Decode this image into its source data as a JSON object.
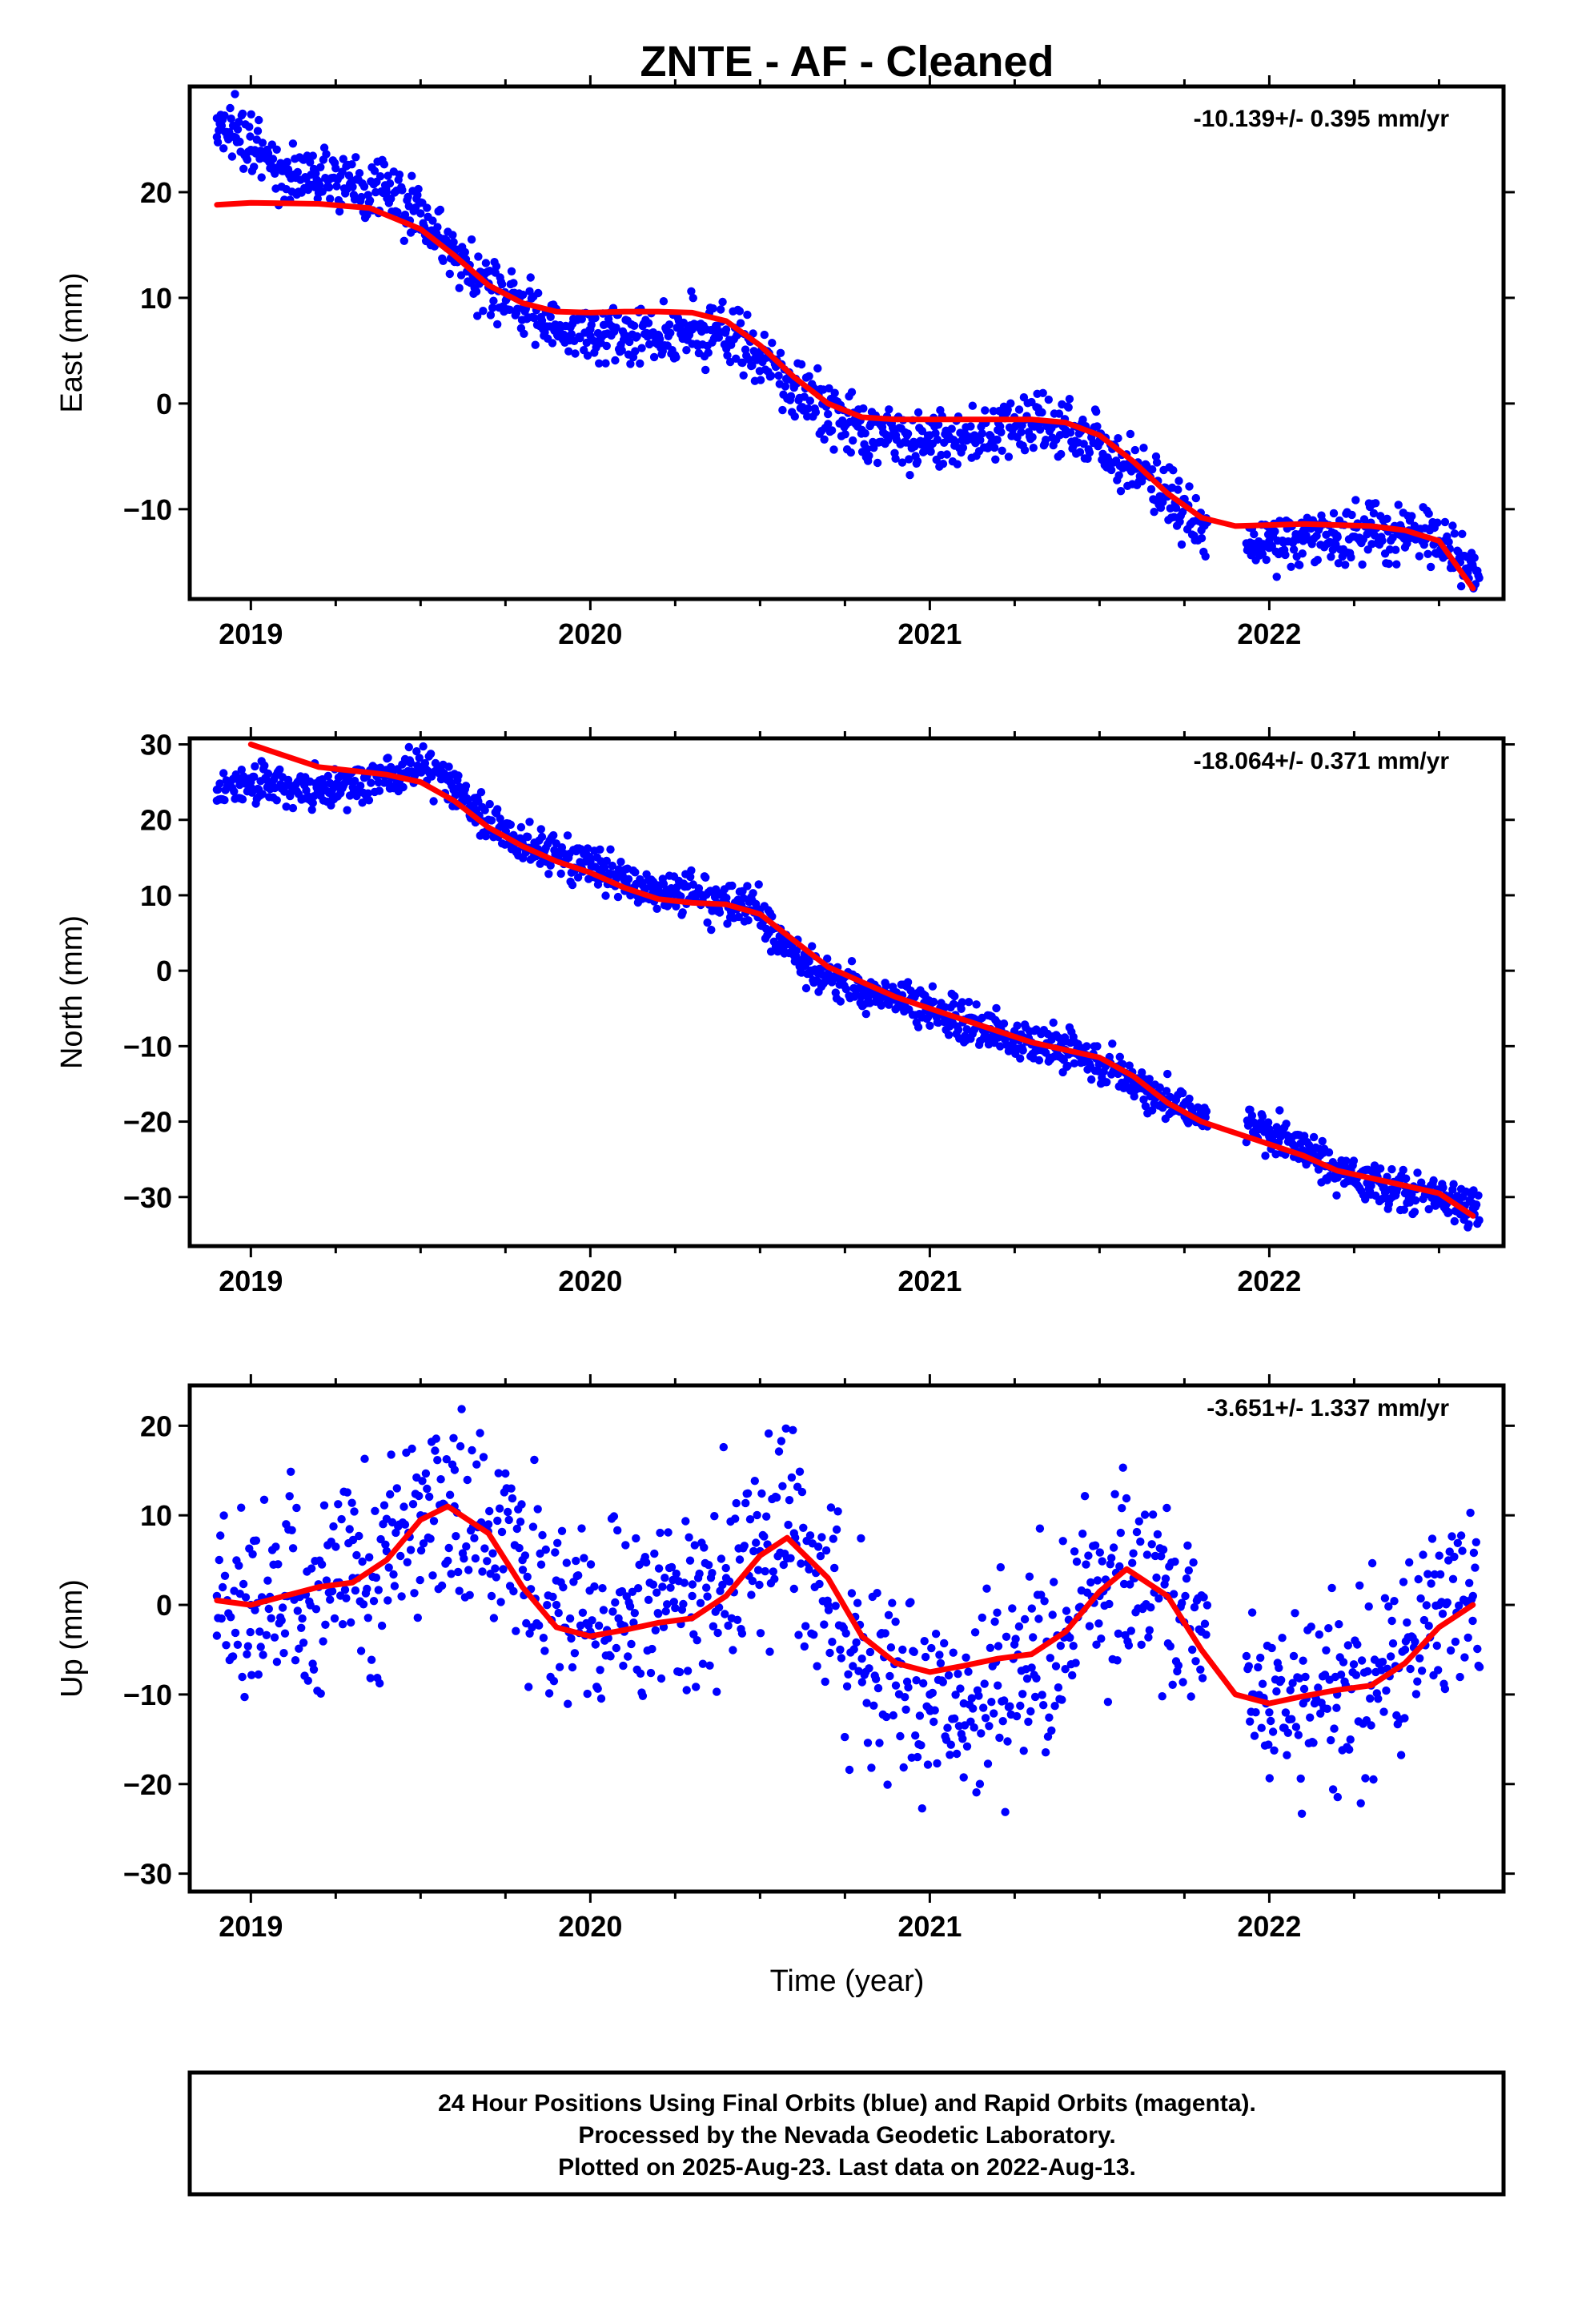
{
  "title": "ZNTE  - AF - Cleaned",
  "colors": {
    "points": "#0000ff",
    "fit": "#ff0000",
    "frame": "#000000"
  },
  "footer": {
    "line1": "24 Hour Positions Using Final Orbits (blue) and Rapid Orbits (magenta).",
    "line2": "Processed by the Nevada Geodetic Laboratory.",
    "line3": "Plotted on 2025-Aug-23. Last data on 2022-Aug-13."
  },
  "chart_data": [
    {
      "type": "scatter",
      "component": "East",
      "ylabel": "East (mm)",
      "xlabel": "",
      "rate": "-10.139+/- 0.395 mm/yr",
      "xlim": [
        2018.82,
        2022.69
      ],
      "ylim": [
        -18.5,
        30
      ],
      "yticks": [
        20,
        10,
        0,
        -10
      ],
      "xticks": [
        2019,
        2020,
        2021,
        2022
      ],
      "series": [
        {
          "role": "daily positions (blue)",
          "x": [
            2018.9,
            2019.0,
            2019.1,
            2019.2,
            2019.3,
            2019.4,
            2019.5,
            2019.6,
            2019.7,
            2019.8,
            2019.9,
            2020.0,
            2020.1,
            2020.2,
            2020.3,
            2020.4,
            2020.5,
            2020.6,
            2020.7,
            2020.8,
            2020.9,
            2021.0,
            2021.1,
            2021.2,
            2021.3,
            2021.4,
            2021.5,
            2021.6,
            2021.7,
            2021.8,
            2021.95,
            2022.0,
            2022.1,
            2022.2,
            2022.3,
            2022.4,
            2022.5,
            2022.6
          ],
          "y": [
            27,
            24,
            22,
            21,
            20.5,
            20,
            18,
            14,
            11,
            9,
            7,
            7,
            6.5,
            6.5,
            7,
            7,
            4.5,
            1.5,
            -1,
            -2.5,
            -3,
            -3,
            -3,
            -2.5,
            -2,
            -2.5,
            -3.5,
            -6,
            -8.5,
            -12,
            -13.5,
            -13,
            -13,
            -12.5,
            -12,
            -12.5,
            -13,
            -15.5
          ]
        },
        {
          "role": "fit (red)",
          "x": [
            2018.9,
            2019.0,
            2019.2,
            2019.35,
            2019.5,
            2019.6,
            2019.7,
            2019.8,
            2019.9,
            2020.0,
            2020.1,
            2020.2,
            2020.3,
            2020.4,
            2020.5,
            2020.6,
            2020.7,
            2020.8,
            2020.9,
            2021.0,
            2021.1,
            2021.2,
            2021.3,
            2021.4,
            2021.5,
            2021.6,
            2021.7,
            2021.8,
            2021.9,
            2022.0,
            2022.1,
            2022.2,
            2022.3,
            2022.4,
            2022.5,
            2022.6
          ],
          "y": [
            18.8,
            19.0,
            18.9,
            18.5,
            16.5,
            14,
            11.2,
            9.5,
            8.7,
            8.6,
            8.7,
            8.7,
            8.6,
            7.8,
            5.5,
            2.5,
            0,
            -1.3,
            -1.5,
            -1.5,
            -1.5,
            -1.5,
            -1.5,
            -1.8,
            -3,
            -5.5,
            -8.5,
            -10.8,
            -11.6,
            -11.5,
            -11.4,
            -11.5,
            -11.6,
            -12,
            -13,
            -17.5
          ]
        }
      ]
    },
    {
      "type": "scatter",
      "component": "North",
      "ylabel": "North (mm)",
      "xlabel": "",
      "rate": "-18.064+/- 0.371 mm/yr",
      "xlim": [
        2018.82,
        2022.69
      ],
      "ylim": [
        -36.5,
        30.8
      ],
      "yticks": [
        30,
        20,
        10,
        0,
        -10,
        -20,
        -30
      ],
      "xticks": [
        2019,
        2020,
        2021,
        2022
      ],
      "series": [
        {
          "role": "daily positions (blue)",
          "x": [
            2018.9,
            2019.0,
            2019.1,
            2019.2,
            2019.3,
            2019.4,
            2019.5,
            2019.6,
            2019.7,
            2019.8,
            2019.9,
            2020.0,
            2020.1,
            2020.2,
            2020.3,
            2020.4,
            2020.5,
            2020.6,
            2020.7,
            2020.8,
            2020.9,
            2021.0,
            2021.1,
            2021.2,
            2021.3,
            2021.4,
            2021.5,
            2021.6,
            2021.7,
            2021.8,
            2021.95,
            2022.0,
            2022.1,
            2022.2,
            2022.3,
            2022.4,
            2022.5,
            2022.6
          ],
          "y": [
            24,
            25,
            24.5,
            24.5,
            25,
            26,
            27,
            24,
            20,
            17,
            15.5,
            14.5,
            12,
            10.5,
            10,
            9,
            7.5,
            2,
            -1,
            -2.5,
            -3.5,
            -5,
            -6.5,
            -8,
            -9.5,
            -10.5,
            -12,
            -15,
            -17.5,
            -19,
            -20,
            -21,
            -24,
            -26.5,
            -28.5,
            -29.5,
            -30,
            -31.5
          ]
        },
        {
          "role": "fit (red)",
          "x": [
            2019.0,
            2019.1,
            2019.2,
            2019.3,
            2019.4,
            2019.5,
            2019.6,
            2019.7,
            2019.8,
            2019.9,
            2020.0,
            2020.1,
            2020.2,
            2020.3,
            2020.4,
            2020.5,
            2020.6,
            2020.7,
            2020.8,
            2020.9,
            2021.0,
            2021.1,
            2021.2,
            2021.3,
            2021.4,
            2021.5,
            2021.6,
            2021.7,
            2021.8,
            2021.9,
            2022.0,
            2022.1,
            2022.2,
            2022.3,
            2022.4,
            2022.5,
            2022.6
          ],
          "y": [
            30,
            28.5,
            27,
            26.5,
            26,
            25,
            22.5,
            19,
            16.5,
            14.5,
            13,
            11,
            9.5,
            9,
            8.8,
            7.5,
            4,
            0.5,
            -1.5,
            -3.5,
            -5,
            -6.5,
            -8,
            -9.5,
            -10.5,
            -11.5,
            -14,
            -17.5,
            -20,
            -21.5,
            -23,
            -24.5,
            -26.5,
            -27.5,
            -28.5,
            -29.5,
            -32.5
          ]
        }
      ]
    },
    {
      "type": "scatter",
      "component": "Up",
      "ylabel": "Up (mm)",
      "xlabel": "Time (year)",
      "rate": "-3.651+/- 1.337 mm/yr",
      "xlim": [
        2018.82,
        2022.69
      ],
      "ylim": [
        -32,
        24.5
      ],
      "yticks": [
        20,
        10,
        0,
        -10,
        -20,
        -30
      ],
      "xticks": [
        2019,
        2020,
        2021,
        2022
      ],
      "series": [
        {
          "role": "daily positions (blue)",
          "x": [
            2018.9,
            2019.0,
            2019.1,
            2019.2,
            2019.3,
            2019.4,
            2019.5,
            2019.6,
            2019.7,
            2019.8,
            2019.9,
            2020.0,
            2020.1,
            2020.2,
            2020.3,
            2020.4,
            2020.5,
            2020.6,
            2020.7,
            2020.8,
            2020.9,
            2021.0,
            2021.1,
            2021.2,
            2021.3,
            2021.4,
            2021.5,
            2021.6,
            2021.7,
            2021.8,
            2021.95,
            2022.0,
            2022.1,
            2022.2,
            2022.3,
            2022.4,
            2022.5,
            2022.6
          ],
          "y": [
            1,
            0,
            1,
            2,
            3,
            6,
            10,
            11,
            9,
            5,
            0,
            -3,
            -3,
            -1,
            1,
            3,
            6,
            8,
            0,
            -6,
            -9,
            -10,
            -11,
            -9,
            -7,
            -3,
            1,
            3,
            1,
            -3,
            -10,
            -12,
            -11,
            -10,
            -9,
            -5,
            0,
            1
          ]
        },
        {
          "role": "fit (red)",
          "x": [
            2018.9,
            2019.0,
            2019.1,
            2019.2,
            2019.3,
            2019.4,
            2019.5,
            2019.58,
            2019.7,
            2019.8,
            2019.9,
            2020.0,
            2020.1,
            2020.2,
            2020.3,
            2020.4,
            2020.5,
            2020.58,
            2020.7,
            2020.8,
            2020.9,
            2021.0,
            2021.1,
            2021.2,
            2021.3,
            2021.4,
            2021.5,
            2021.58,
            2021.7,
            2021.8,
            2021.9,
            2022.0,
            2022.1,
            2022.2,
            2022.3,
            2022.4,
            2022.5,
            2022.6
          ],
          "y": [
            0.5,
            0,
            1,
            2,
            2.5,
            5,
            9.5,
            11,
            8,
            2,
            -2.5,
            -3.5,
            -2.8,
            -2,
            -1.5,
            1,
            5.5,
            7.5,
            3,
            -3.5,
            -6.5,
            -7.5,
            -6.8,
            -6,
            -5.5,
            -3,
            1.5,
            4,
            1,
            -5,
            -10,
            -11,
            -10.2,
            -9.5,
            -9,
            -6.5,
            -2.5,
            0
          ]
        }
      ]
    }
  ]
}
